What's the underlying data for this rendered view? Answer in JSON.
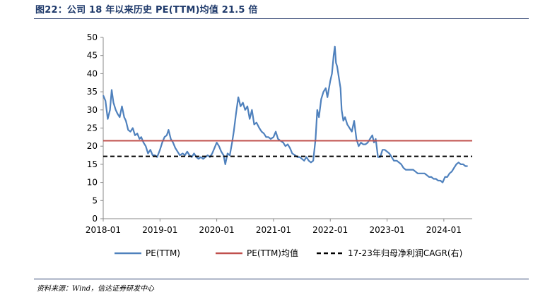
{
  "figure": {
    "title": "图22：公司 18 年以来历史 PE(TTM)均值 21.5 倍",
    "source": "资料来源：Wind，信达证券研发中心"
  },
  "chart_data": {
    "type": "line",
    "title": "图22：公司 18 年以来历史 PE(TTM)均值 21.5 倍",
    "xlabel": "",
    "ylabel": "",
    "ylim": [
      0,
      50
    ],
    "yticks": [
      0,
      5,
      10,
      15,
      20,
      25,
      30,
      35,
      40,
      45,
      50
    ],
    "xlim": [
      2018.0,
      2024.5
    ],
    "xtick_labels": [
      "2018-01",
      "2019-01",
      "2020-01",
      "2021-01",
      "2022-01",
      "2023-01",
      "2024-01"
    ],
    "xtick_values": [
      2018.0,
      2019.0,
      2020.0,
      2021.0,
      2022.0,
      2023.0,
      2024.0
    ],
    "legend_position": "bottom",
    "series": [
      {
        "name": "PE(TTM)",
        "style": "solid",
        "color": "#4f81bd",
        "points": [
          [
            2018.0,
            34
          ],
          [
            2018.04,
            32.5
          ],
          [
            2018.08,
            27.5
          ],
          [
            2018.12,
            30
          ],
          [
            2018.15,
            35.5
          ],
          [
            2018.18,
            32
          ],
          [
            2018.22,
            30
          ],
          [
            2018.25,
            29
          ],
          [
            2018.29,
            28
          ],
          [
            2018.33,
            31
          ],
          [
            2018.37,
            28
          ],
          [
            2018.4,
            27
          ],
          [
            2018.44,
            24.5
          ],
          [
            2018.48,
            24
          ],
          [
            2018.52,
            25
          ],
          [
            2018.56,
            23
          ],
          [
            2018.6,
            23.5
          ],
          [
            2018.64,
            22
          ],
          [
            2018.67,
            22.5
          ],
          [
            2018.71,
            21
          ],
          [
            2018.75,
            20
          ],
          [
            2018.79,
            18
          ],
          [
            2018.83,
            19
          ],
          [
            2018.87,
            17.5
          ],
          [
            2018.91,
            17.5
          ],
          [
            2018.95,
            17
          ],
          [
            2019.0,
            19
          ],
          [
            2019.04,
            21
          ],
          [
            2019.08,
            22.5
          ],
          [
            2019.12,
            23
          ],
          [
            2019.15,
            24.5
          ],
          [
            2019.19,
            22
          ],
          [
            2019.23,
            21
          ],
          [
            2019.27,
            19.5
          ],
          [
            2019.31,
            18.5
          ],
          [
            2019.35,
            17.5
          ],
          [
            2019.4,
            18
          ],
          [
            2019.44,
            17.5
          ],
          [
            2019.48,
            18.5
          ],
          [
            2019.52,
            17.5
          ],
          [
            2019.56,
            17
          ],
          [
            2019.6,
            18
          ],
          [
            2019.64,
            17
          ],
          [
            2019.68,
            16.5
          ],
          [
            2019.72,
            17
          ],
          [
            2019.76,
            16.5
          ],
          [
            2019.8,
            17
          ],
          [
            2019.84,
            17.5
          ],
          [
            2019.88,
            17
          ],
          [
            2019.92,
            18
          ],
          [
            2019.96,
            19.5
          ],
          [
            2020.0,
            21
          ],
          [
            2020.04,
            20
          ],
          [
            2020.08,
            18.5
          ],
          [
            2020.12,
            17.5
          ],
          [
            2020.15,
            15
          ],
          [
            2020.19,
            18
          ],
          [
            2020.23,
            17.5
          ],
          [
            2020.27,
            21
          ],
          [
            2020.3,
            24
          ],
          [
            2020.34,
            29
          ],
          [
            2020.38,
            33.5
          ],
          [
            2020.42,
            31
          ],
          [
            2020.46,
            32
          ],
          [
            2020.5,
            30
          ],
          [
            2020.54,
            31
          ],
          [
            2020.58,
            27.5
          ],
          [
            2020.62,
            30
          ],
          [
            2020.66,
            26
          ],
          [
            2020.7,
            26.5
          ],
          [
            2020.75,
            25
          ],
          [
            2020.79,
            24
          ],
          [
            2020.83,
            23.5
          ],
          [
            2020.87,
            22.5
          ],
          [
            2020.91,
            22.5
          ],
          [
            2020.95,
            22
          ],
          [
            2021.0,
            22.5
          ],
          [
            2021.04,
            24
          ],
          [
            2021.08,
            22
          ],
          [
            2021.12,
            21.5
          ],
          [
            2021.17,
            21
          ],
          [
            2021.21,
            20
          ],
          [
            2021.25,
            20.5
          ],
          [
            2021.29,
            19.5
          ],
          [
            2021.33,
            18
          ],
          [
            2021.38,
            17.5
          ],
          [
            2021.42,
            17
          ],
          [
            2021.46,
            17
          ],
          [
            2021.5,
            16.5
          ],
          [
            2021.54,
            16
          ],
          [
            2021.58,
            17
          ],
          [
            2021.62,
            16
          ],
          [
            2021.66,
            15.5
          ],
          [
            2021.7,
            16
          ],
          [
            2021.74,
            22
          ],
          [
            2021.77,
            30
          ],
          [
            2021.8,
            28
          ],
          [
            2021.84,
            33
          ],
          [
            2021.88,
            35
          ],
          [
            2021.92,
            36
          ],
          [
            2021.95,
            33.5
          ],
          [
            2022.0,
            38
          ],
          [
            2022.03,
            40
          ],
          [
            2022.06,
            45
          ],
          [
            2022.08,
            47.5
          ],
          [
            2022.1,
            43
          ],
          [
            2022.12,
            42
          ],
          [
            2022.15,
            39
          ],
          [
            2022.18,
            36
          ],
          [
            2022.2,
            30
          ],
          [
            2022.23,
            27
          ],
          [
            2022.26,
            28
          ],
          [
            2022.3,
            26
          ],
          [
            2022.34,
            25
          ],
          [
            2022.38,
            24
          ],
          [
            2022.42,
            27
          ],
          [
            2022.46,
            22
          ],
          [
            2022.5,
            20
          ],
          [
            2022.54,
            21
          ],
          [
            2022.58,
            20.5
          ],
          [
            2022.62,
            20.5
          ],
          [
            2022.66,
            21
          ],
          [
            2022.7,
            22
          ],
          [
            2022.74,
            23
          ],
          [
            2022.77,
            21
          ],
          [
            2022.8,
            22
          ],
          [
            2022.84,
            17
          ],
          [
            2022.88,
            17
          ],
          [
            2022.92,
            19
          ],
          [
            2022.96,
            19
          ],
          [
            2023.0,
            18.5
          ],
          [
            2023.04,
            18
          ],
          [
            2023.08,
            17
          ],
          [
            2023.12,
            16
          ],
          [
            2023.17,
            16
          ],
          [
            2023.21,
            15.5
          ],
          [
            2023.25,
            15
          ],
          [
            2023.29,
            14
          ],
          [
            2023.33,
            13.5
          ],
          [
            2023.38,
            13.5
          ],
          [
            2023.42,
            13.5
          ],
          [
            2023.46,
            13.5
          ],
          [
            2023.5,
            13
          ],
          [
            2023.54,
            12.5
          ],
          [
            2023.58,
            12.5
          ],
          [
            2023.62,
            12.5
          ],
          [
            2023.66,
            12.5
          ],
          [
            2023.7,
            12
          ],
          [
            2023.74,
            11.5
          ],
          [
            2023.78,
            11.5
          ],
          [
            2023.82,
            11
          ],
          [
            2023.86,
            11
          ],
          [
            2023.9,
            10.5
          ],
          [
            2023.94,
            10.5
          ],
          [
            2023.98,
            10
          ],
          [
            2024.02,
            11.5
          ],
          [
            2024.06,
            11.5
          ],
          [
            2024.1,
            12.5
          ],
          [
            2024.14,
            13
          ],
          [
            2024.18,
            14
          ],
          [
            2024.22,
            15
          ],
          [
            2024.26,
            15.5
          ],
          [
            2024.3,
            15
          ],
          [
            2024.34,
            15
          ],
          [
            2024.38,
            14.5
          ],
          [
            2024.42,
            14.5
          ]
        ]
      },
      {
        "name": "PE(TTM)均值",
        "style": "solid",
        "color": "#c0504d",
        "points": [
          [
            2018.0,
            21.5
          ],
          [
            2024.5,
            21.5
          ]
        ]
      },
      {
        "name": "17-23年归母净利润CAGR(右)",
        "style": "dashed",
        "color": "#000000",
        "points": [
          [
            2018.0,
            17.2
          ],
          [
            2024.5,
            17.2
          ]
        ]
      }
    ]
  }
}
